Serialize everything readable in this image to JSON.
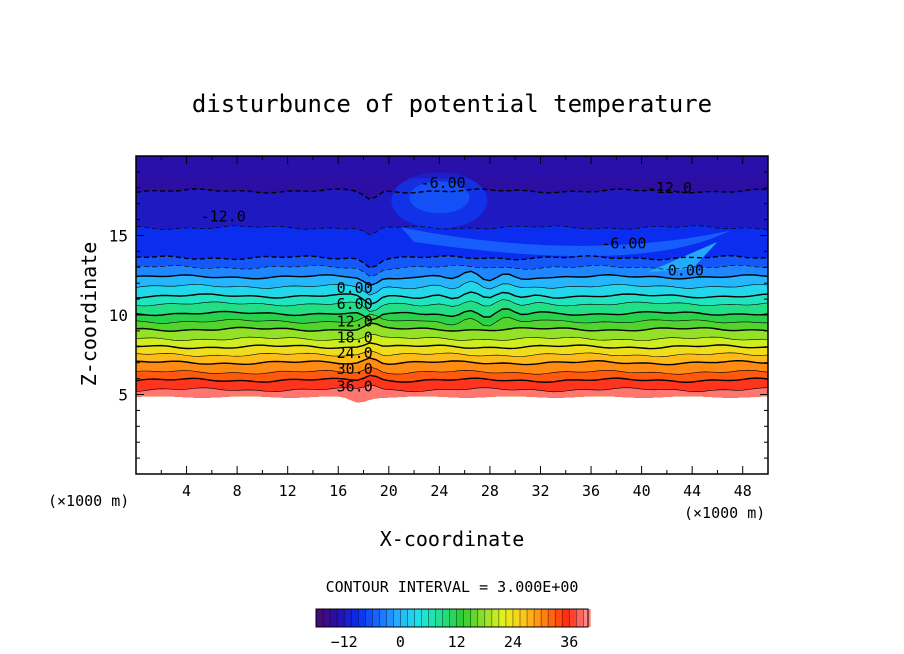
{
  "chart_data": {
    "type": "heatmap",
    "title": "disturbunce of potential temperature",
    "xlabel": "X-coordinate",
    "ylabel": "Z-coordinate",
    "x_unit_left": "(×1000 m)",
    "x_unit_right": "(×1000 m)",
    "xlim": [
      0,
      50
    ],
    "ylim": [
      0,
      20
    ],
    "x_ticks": [
      4,
      8,
      12,
      16,
      20,
      24,
      28,
      32,
      36,
      40,
      44,
      48
    ],
    "y_ticks": [
      5,
      10,
      15
    ],
    "contour_interval_text": "CONTOUR INTERVAL = 3.000E+00",
    "contour_labels": [
      {
        "text": "-6.00",
        "x": 24.3,
        "y": 18.3
      },
      {
        "text": "-12.0",
        "x": 42.2,
        "y": 18.0
      },
      {
        "text": "-12.0",
        "x": 6.9,
        "y": 16.2
      },
      {
        "text": "-6.00",
        "x": 38.6,
        "y": 14.5
      },
      {
        "text": "0.00",
        "x": 43.5,
        "y": 12.8
      },
      {
        "text": "0.00",
        "x": 17.3,
        "y": 11.7
      },
      {
        "text": "6.00",
        "x": 17.3,
        "y": 10.7
      },
      {
        "text": "12.0",
        "x": 17.3,
        "y": 9.6
      },
      {
        "text": "18.0",
        "x": 17.3,
        "y": 8.6
      },
      {
        "text": "24.0",
        "x": 17.3,
        "y": 7.6
      },
      {
        "text": "30.0",
        "x": 17.3,
        "y": 6.6
      },
      {
        "text": "36.0",
        "x": 17.3,
        "y": 5.5
      }
    ],
    "level_bands": [
      {
        "value": 39,
        "z_top": 5.3
      },
      {
        "value": 36,
        "z_top": 5.9
      },
      {
        "value": 33,
        "z_top": 6.4
      },
      {
        "value": 30,
        "z_top": 7.0
      },
      {
        "value": 27,
        "z_top": 7.5
      },
      {
        "value": 24,
        "z_top": 8.0
      },
      {
        "value": 21,
        "z_top": 8.5
      },
      {
        "value": 18,
        "z_top": 9.1
      },
      {
        "value": 15,
        "z_top": 9.6
      },
      {
        "value": 12,
        "z_top": 10.1
      },
      {
        "value": 9,
        "z_top": 10.7
      },
      {
        "value": 6,
        "z_top": 11.2
      },
      {
        "value": 3,
        "z_top": 11.8
      },
      {
        "value": 0,
        "z_top": 12.4
      },
      {
        "value": -3,
        "z_top": 13.0
      },
      {
        "value": -6,
        "z_top": 13.6
      },
      {
        "value": -9,
        "z_top": 15.5
      },
      {
        "value": -12,
        "z_top": 17.8
      },
      {
        "value": -14,
        "z_top": 20.0
      }
    ],
    "colorbar": {
      "min": -18,
      "max": 40,
      "ticks": [
        -12,
        0,
        12,
        24,
        36
      ],
      "colors": [
        "#4a0a6e",
        "#2a0fa8",
        "#0a2cf0",
        "#1a6cff",
        "#25b4ff",
        "#1fe6e0",
        "#22e08a",
        "#2bcc32",
        "#8ee02a",
        "#e6f21e",
        "#ffc21a",
        "#ff7a0f",
        "#ff2a10",
        "#ff8c8c"
      ]
    }
  }
}
